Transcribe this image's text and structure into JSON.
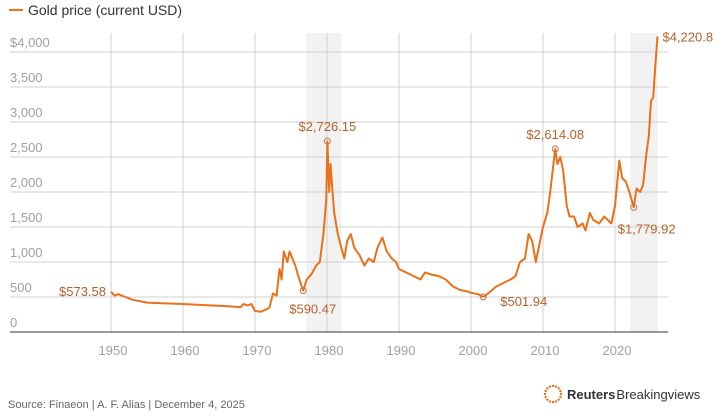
{
  "legend": {
    "label": "Gold price (current USD)",
    "color": "#e8711a"
  },
  "chart_data": {
    "type": "line",
    "title": "Gold price (current USD)",
    "xlabel": "",
    "ylabel": "",
    "xlim": [
      1937.5,
      2027
    ],
    "ylim": [
      0,
      4250
    ],
    "grid": true,
    "x_ticks": [
      1950,
      1960,
      1970,
      1980,
      1990,
      2000,
      2010,
      2020
    ],
    "x_tick_labels": [
      "1950",
      "1960",
      "1970",
      "1980",
      "1990",
      "2000",
      "2010",
      "2020"
    ],
    "y_ticks": [
      0,
      500,
      1000,
      1500,
      2000,
      2500,
      3000,
      3500,
      4000
    ],
    "y_tick_labels": [
      "0",
      "500",
      "1,000",
      "1,500",
      "2,000",
      "2,500",
      "3,000",
      "3,500",
      "$4,000"
    ],
    "shaded_periods": [
      [
        1977.1,
        1982.0
      ],
      [
        2022.1,
        2025.9
      ]
    ],
    "series": [
      {
        "name": "Gold price (current USD)",
        "color": "#e8711a",
        "x": [
          1950,
          1950.5,
          1951,
          1952,
          1953,
          1954,
          1955,
          1957,
          1960,
          1963,
          1966,
          1968,
          1968.4,
          1969,
          1969.5,
          1970,
          1970.8,
          1971.5,
          1972,
          1972.5,
          1973,
          1973.4,
          1973.7,
          1974,
          1974.5,
          1974.8,
          1975.2,
          1975.6,
          1976,
          1976.7,
          1977.2,
          1977.8,
          1978.5,
          1979,
          1979.5,
          1979.9,
          1980.05,
          1980.3,
          1980.5,
          1980.7,
          1981,
          1981.5,
          1982,
          1982.4,
          1982.8,
          1983.3,
          1983.8,
          1984.5,
          1985.2,
          1985.8,
          1986.5,
          1987,
          1987.7,
          1988.3,
          1989,
          1989.6,
          1990,
          1991,
          1992,
          1993,
          1993.6,
          1994.5,
          1995.5,
          1996.5,
          1997.5,
          1998.5,
          1999.5,
          2000,
          2001,
          2001.7,
          2002.5,
          2003.5,
          2004.5,
          2005.5,
          2006.2,
          2006.8,
          2007.5,
          2008,
          2008.5,
          2009,
          2009.6,
          2010,
          2010.6,
          2011,
          2011.7,
          2012,
          2012.4,
          2012.8,
          2013.3,
          2013.7,
          2014.3,
          2014.8,
          2015.5,
          2015.9,
          2016.5,
          2017,
          2017.8,
          2018.5,
          2019,
          2019.5,
          2020,
          2020.6,
          2021,
          2021.5,
          2022,
          2022.6,
          2023,
          2023.5,
          2023.9,
          2024.3,
          2024.7,
          2025,
          2025.3,
          2025.6,
          2025.9
        ],
        "y": [
          573.58,
          520,
          540,
          500,
          460,
          440,
          420,
          410,
          400,
          385,
          370,
          355,
          400,
          380,
          400,
          300,
          290,
          320,
          350,
          550,
          520,
          900,
          750,
          1150,
          1000,
          1150,
          1050,
          950,
          800,
          590.47,
          750,
          820,
          950,
          1000,
          1400,
          1900,
          2726.15,
          2000,
          2400,
          2100,
          1700,
          1400,
          1200,
          1050,
          1300,
          1400,
          1200,
          1100,
          950,
          1050,
          1000,
          1200,
          1350,
          1150,
          1050,
          1000,
          900,
          850,
          800,
          750,
          850,
          820,
          800,
          750,
          650,
          600,
          580,
          560,
          540,
          501.94,
          560,
          650,
          700,
          750,
          800,
          1000,
          1050,
          1400,
          1300,
          1000,
          1300,
          1500,
          1700,
          2000,
          2614.08,
          2400,
          2500,
          2300,
          1800,
          1650,
          1650,
          1500,
          1550,
          1450,
          1700,
          1600,
          1550,
          1650,
          1600,
          1550,
          1800,
          2450,
          2200,
          2150,
          2000,
          1779.92,
          2050,
          2000,
          2100,
          2500,
          2800,
          3300,
          3350,
          3800,
          4220.8
        ]
      }
    ],
    "annotations": [
      {
        "x": 1950,
        "y": 573.58,
        "label": "$573.58"
      },
      {
        "x": 1976.7,
        "y": 590.47,
        "label": "$590.47"
      },
      {
        "x": 1980.05,
        "y": 2726.15,
        "label": "$2,726.15"
      },
      {
        "x": 2001.7,
        "y": 501.94,
        "label": "$501.94"
      },
      {
        "x": 2011.7,
        "y": 2614.08,
        "label": "$2,614.08"
      },
      {
        "x": 2022.6,
        "y": 1779.92,
        "label": "$1,779.92"
      },
      {
        "x": 2025.9,
        "y": 4220.8,
        "label": "$4,220.8"
      }
    ]
  },
  "footer": {
    "source": "Source: Finaeon | A. F. Alias | December 4, 2025",
    "logo_bold": "Reuters",
    "logo_rest": "Breakingviews"
  }
}
